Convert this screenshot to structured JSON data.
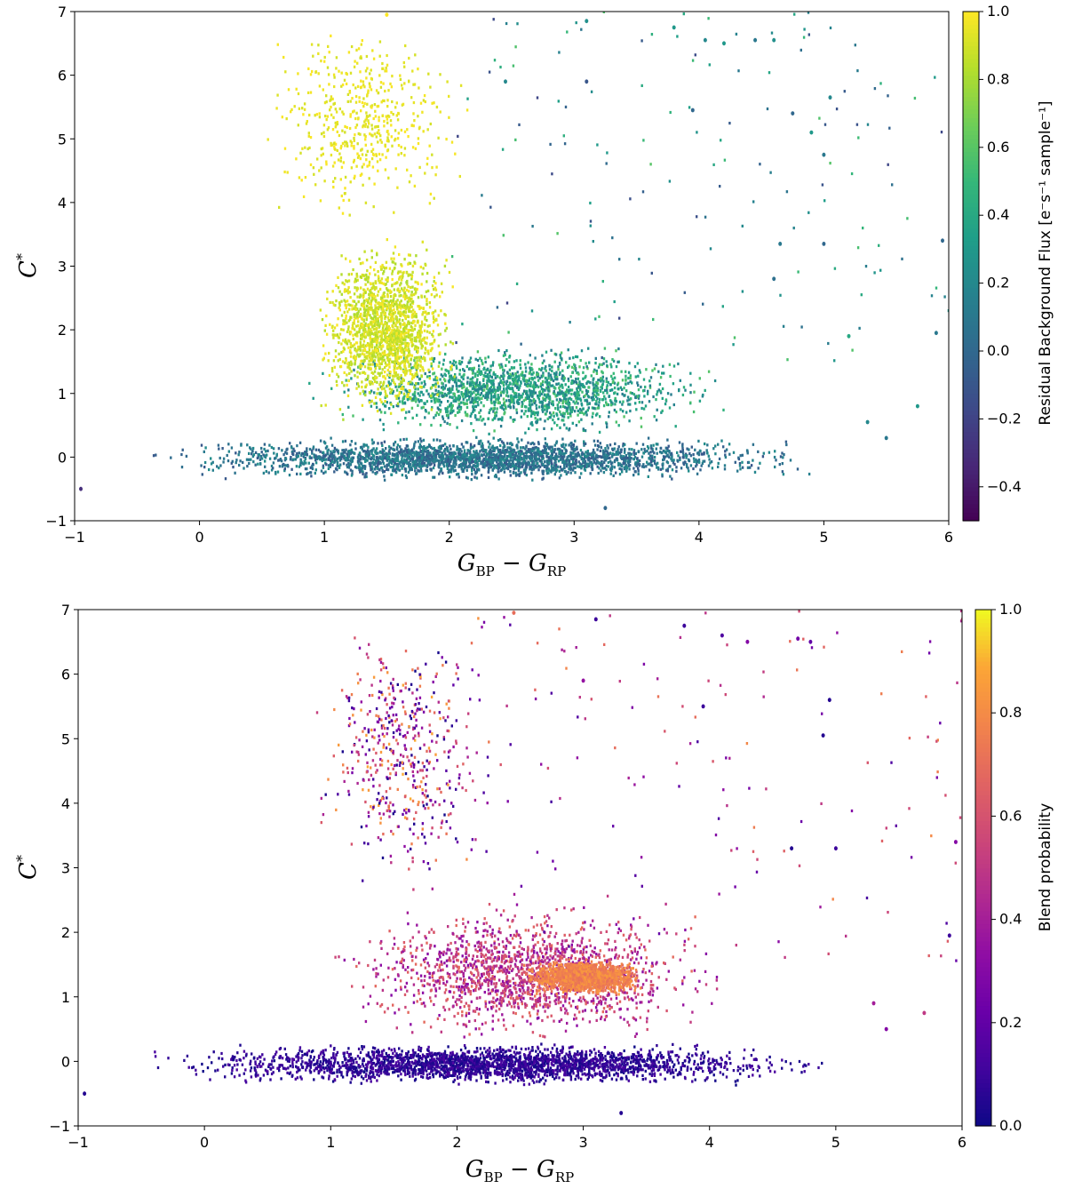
{
  "chart_data": [
    {
      "type": "scatter",
      "title": "",
      "xlabel": "G_BP − G_RP",
      "ylabel": "C*",
      "xlim": [
        -1,
        6
      ],
      "ylim": [
        -1,
        7
      ],
      "xticks": [
        "−1",
        "0",
        "1",
        "2",
        "3",
        "4",
        "5",
        "6"
      ],
      "yticks": [
        "−1",
        "0",
        "1",
        "2",
        "3",
        "4",
        "5",
        "6",
        "7"
      ],
      "colorbar": {
        "label": "Residual Background Flux [e⁻s⁻¹ sample⁻¹]",
        "colormap": "viridis",
        "range": [
          -0.5,
          1.0
        ],
        "ticks": [
          "−0.4",
          "−0.2",
          "0.0",
          "0.2",
          "0.4",
          "0.6",
          "0.8",
          "1.0"
        ],
        "tick_values": [
          -0.4,
          -0.2,
          0.0,
          0.2,
          0.4,
          0.6,
          0.8,
          1.0
        ]
      },
      "density_regions": [
        {
          "x": [
            -0.6,
            5.2
          ],
          "y": [
            -0.4,
            0.35
          ],
          "color_value": [
            -0.1,
            0.25
          ],
          "density": "very high"
        },
        {
          "x": [
            0.8,
            4.3
          ],
          "y": [
            0.3,
            1.8
          ],
          "color_value": [
            0.1,
            0.6
          ],
          "density": "high"
        },
        {
          "x": [
            0.9,
            2.1
          ],
          "y": [
            0.5,
            3.5
          ],
          "color_value": [
            0.8,
            1.0
          ],
          "density": "high"
        },
        {
          "x": [
            0.4,
            2.2
          ],
          "y": [
            3.5,
            7.0
          ],
          "color_value": [
            0.9,
            1.0
          ],
          "density": "medium"
        },
        {
          "x": [
            2.0,
            6.0
          ],
          "y": [
            1.5,
            7.0
          ],
          "color_value": [
            -0.2,
            0.6
          ],
          "density": "sparse"
        }
      ],
      "series": [
        {
          "points": [
            [
              -0.95,
              -0.5
            ],
            [
              2.7,
              0.55
            ],
            [
              3.1,
              6.85
            ],
            [
              3.8,
              6.75
            ],
            [
              4.05,
              6.55
            ],
            [
              4.2,
              6.5
            ],
            [
              4.45,
              6.55
            ],
            [
              4.6,
              6.55
            ],
            [
              4.75,
              5.4
            ],
            [
              4.9,
              5.1
            ],
            [
              5.05,
              5.65
            ],
            [
              5.0,
              4.75
            ],
            [
              5.0,
              3.35
            ],
            [
              4.65,
              3.35
            ],
            [
              4.6,
              2.8
            ],
            [
              5.2,
              1.9
            ],
            [
              5.95,
              3.4
            ],
            [
              5.9,
              1.95
            ],
            [
              5.75,
              0.8
            ],
            [
              5.5,
              0.3
            ],
            [
              5.35,
              0.55
            ],
            [
              3.25,
              -0.8
            ],
            [
              3.95,
              5.45
            ],
            [
              2.45,
              5.9
            ],
            [
              3.1,
              5.9
            ],
            [
              1.5,
              6.95
            ]
          ],
          "colors": [
            -0.3,
            0.2,
            0.25,
            0.3,
            0.2,
            0.3,
            0.1,
            0.25,
            0.0,
            0.3,
            0.2,
            0.1,
            0.0,
            0.1,
            0.05,
            0.4,
            0.0,
            0.1,
            0.3,
            0.1,
            0.2,
            0.0,
            0.0,
            0.2,
            -0.1,
            1.0
          ]
        }
      ]
    },
    {
      "type": "scatter",
      "title": "",
      "xlabel": "G_BP − G_RP",
      "ylabel": "C*",
      "xlim": [
        -1,
        6
      ],
      "ylim": [
        -1,
        7
      ],
      "xticks": [
        "−1",
        "0",
        "1",
        "2",
        "3",
        "4",
        "5",
        "6"
      ],
      "yticks": [
        "−1",
        "0",
        "1",
        "2",
        "3",
        "4",
        "5",
        "6",
        "7"
      ],
      "colorbar": {
        "label": "Blend probability",
        "colormap": "plasma",
        "range": [
          0.0,
          1.0
        ],
        "ticks": [
          "0.0",
          "0.2",
          "0.4",
          "0.6",
          "0.8",
          "1.0"
        ],
        "tick_values": [
          0.0,
          0.2,
          0.4,
          0.6,
          0.8,
          1.0
        ]
      },
      "density_regions": [
        {
          "x": [
            -0.6,
            5.1
          ],
          "y": [
            -0.4,
            0.3
          ],
          "color_value": [
            0.0,
            0.15
          ],
          "density": "very high"
        },
        {
          "x": [
            0.9,
            4.2
          ],
          "y": [
            0.2,
            2.5
          ],
          "color_value": [
            0.3,
            0.7
          ],
          "density": "high"
        },
        {
          "x": [
            2.5,
            3.5
          ],
          "y": [
            1.0,
            1.6
          ],
          "color_value": [
            0.7,
            0.85
          ],
          "density": "high"
        },
        {
          "x": [
            0.8,
            2.3
          ],
          "y": [
            2.5,
            7.0
          ],
          "color_value": [
            0.0,
            0.9
          ],
          "density": "medium"
        },
        {
          "x": [
            2.0,
            6.0
          ],
          "y": [
            1.5,
            7.0
          ],
          "color_value": [
            0.1,
            0.8
          ],
          "density": "sparse"
        }
      ],
      "series": [
        {
          "points": [
            [
              -0.95,
              -0.5
            ],
            [
              3.1,
              6.85
            ],
            [
              3.8,
              6.75
            ],
            [
              4.1,
              6.6
            ],
            [
              4.3,
              6.5
            ],
            [
              4.7,
              6.55
            ],
            [
              4.8,
              6.5
            ],
            [
              4.95,
              5.6
            ],
            [
              4.9,
              5.05
            ],
            [
              4.65,
              3.3
            ],
            [
              5.95,
              3.4
            ],
            [
              5.9,
              1.95
            ],
            [
              5.7,
              0.75
            ],
            [
              5.4,
              0.5
            ],
            [
              5.3,
              0.9
            ],
            [
              3.3,
              -0.8
            ],
            [
              3.95,
              5.5
            ],
            [
              3.0,
              5.9
            ],
            [
              2.45,
              6.95
            ],
            [
              5.0,
              3.3
            ]
          ],
          "colors": [
            0.05,
            0.1,
            0.1,
            0.15,
            0.3,
            0.25,
            0.2,
            0.05,
            0.05,
            0.05,
            0.3,
            0.1,
            0.5,
            0.3,
            0.4,
            0.05,
            0.1,
            0.35,
            0.7,
            0.1
          ]
        }
      ]
    }
  ]
}
